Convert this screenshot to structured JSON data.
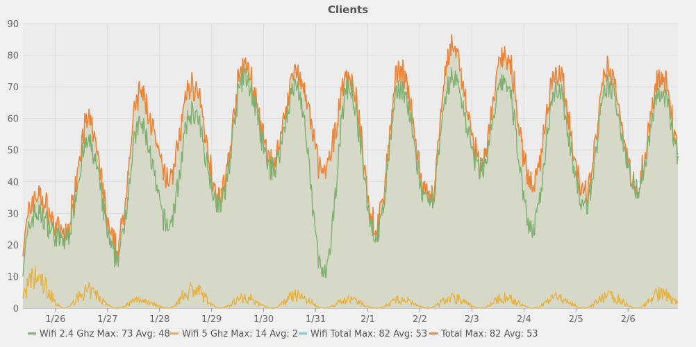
{
  "chart_data": {
    "type": "area",
    "title": "Clients",
    "xlabel": "",
    "ylabel": "",
    "ylim": [
      0,
      90
    ],
    "yticks": [
      0,
      10,
      20,
      30,
      40,
      50,
      60,
      70,
      80,
      90
    ],
    "xlim": [
      "1/25 09:00",
      "2/6 23:00"
    ],
    "xticks": [
      "1/26",
      "1/27",
      "1/28",
      "1/29",
      "1/30",
      "1/31",
      "2/1",
      "2/2",
      "2/3",
      "2/4",
      "2/5",
      "2/6"
    ],
    "grid": true,
    "legend_position": "bottom",
    "daily_peak_values": {
      "x": [
        "1/25",
        "1/26",
        "1/27",
        "1/28",
        "1/29",
        "1/30",
        "1/31",
        "2/1",
        "2/2",
        "2/3",
        "2/4",
        "2/5",
        "2/6"
      ],
      "total": [
        35,
        58,
        67,
        70,
        76,
        74,
        73,
        75,
        82,
        80,
        75,
        74,
        72
      ],
      "wifi_2_4_ghz": [
        30,
        52,
        58,
        62,
        73,
        70,
        70,
        70,
        73,
        72,
        70,
        70,
        68
      ],
      "wifi_5_ghz": [
        14,
        8,
        4,
        9,
        5,
        6,
        4,
        4,
        5,
        5,
        5,
        6,
        7
      ]
    },
    "daily_trough_values": {
      "x": [
        "1/25",
        "1/26",
        "1/27",
        "1/28",
        "1/29",
        "1/30",
        "1/31",
        "2/1",
        "2/2",
        "2/3",
        "2/4",
        "2/5",
        "2/6"
      ],
      "total": [
        5,
        22,
        18,
        40,
        35,
        45,
        42,
        25,
        33,
        45,
        38,
        35,
        38
      ],
      "wifi_2_4_ghz": [
        2,
        21,
        16,
        26,
        33,
        44,
        10,
        23,
        32,
        44,
        25,
        32,
        38
      ],
      "wifi_5_ghz": [
        0,
        0,
        0,
        0,
        0,
        0,
        0,
        0,
        0,
        0,
        0,
        0,
        0
      ]
    },
    "series": [
      {
        "name": "Wifi 2.4 Ghz",
        "color": "#7fb070",
        "max": "73",
        "avg": "48"
      },
      {
        "name": "Wifi 5 Ghz",
        "color": "#e8b23c",
        "max": "14",
        "avg": "2"
      },
      {
        "name": "Wifi Total",
        "color": "#6fcfe0",
        "max": "82",
        "avg": "53"
      },
      {
        "name": "Total",
        "color": "#ee8435",
        "max": "82",
        "avg": "53"
      }
    ]
  },
  "legend": [
    {
      "name": "Wifi 2.4 Ghz",
      "max_label": "Max: 73",
      "avg_label": "Avg: 48",
      "color": "#7fb070"
    },
    {
      "name": "Wifi 5 Ghz",
      "max_label": "Max: 14",
      "avg_label": "Avg: 2",
      "color": "#e8b23c"
    },
    {
      "name": "Wifi Total",
      "max_label": "Max: 82",
      "avg_label": "Avg: 53",
      "color": "#6fcfe0"
    },
    {
      "name": "Total",
      "max_label": "Max: 82",
      "avg_label": "Avg: 53",
      "color": "#ee8435"
    }
  ]
}
